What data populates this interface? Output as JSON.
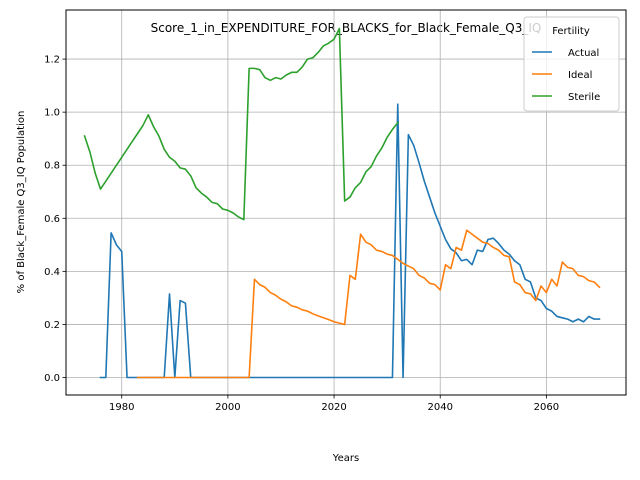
{
  "chart_data": {
    "type": "line",
    "title": "Score_1_in_EXPENDITURE_FOR_BLACKS_for_Black_Female_Q3_IQ",
    "xlabel": "Years",
    "ylabel": "% of Black_Female Q3_IQ Population",
    "xlim": [
      1969.5,
      2075
    ],
    "ylim": [
      -0.066,
      1.385
    ],
    "xticks": [
      1980,
      2000,
      2020,
      2040,
      2060
    ],
    "yticks": [
      0.0,
      0.2,
      0.4,
      0.6,
      0.8,
      1.0,
      1.2
    ],
    "xtick_labels": [
      "1980",
      "2000",
      "2020",
      "2040",
      "2060"
    ],
    "ytick_labels": [
      "0.0",
      "0.2",
      "0.4",
      "0.6",
      "0.8",
      "1.0",
      "1.2"
    ],
    "grid": true,
    "legend": {
      "title": "Fertility",
      "position": "top-right"
    },
    "series": [
      {
        "name": "Actual",
        "color": "#1f77b4",
        "x": [
          1976,
          1977,
          1978,
          1979,
          1980,
          1981,
          1982,
          1983,
          1984,
          1985,
          1986,
          1987,
          1988,
          1989,
          1990,
          1991,
          1992,
          1993,
          1994,
          1995,
          2000,
          2005,
          2010,
          2015,
          2020,
          2025,
          2030,
          2031,
          2032,
          2033,
          2034,
          2035,
          2036,
          2037,
          2038,
          2039,
          2040,
          2041,
          2042,
          2043,
          2044,
          2045,
          2046,
          2047,
          2048,
          2049,
          2050,
          2051,
          2052,
          2053,
          2054,
          2055,
          2056,
          2057,
          2058,
          2059,
          2060,
          2061,
          2062,
          2063,
          2064,
          2065,
          2066,
          2067,
          2068,
          2069,
          2070
        ],
        "y": [
          0.0,
          0.0,
          0.545,
          0.5,
          0.475,
          0.0,
          0.0,
          0.0,
          0.0,
          0.0,
          0.0,
          0.0,
          0.0,
          0.315,
          0.0,
          0.29,
          0.28,
          0.0,
          0.0,
          0.0,
          0.0,
          0.0,
          0.0,
          0.0,
          0.0,
          0.0,
          0.0,
          0.0,
          1.03,
          0.0,
          0.915,
          0.875,
          0.81,
          0.74,
          0.68,
          0.62,
          0.57,
          0.52,
          0.485,
          0.47,
          0.44,
          0.445,
          0.425,
          0.48,
          0.475,
          0.52,
          0.525,
          0.505,
          0.48,
          0.465,
          0.44,
          0.425,
          0.37,
          0.36,
          0.3,
          0.29,
          0.26,
          0.25,
          0.23,
          0.225,
          0.22,
          0.21,
          0.22,
          0.21,
          0.23,
          0.22,
          0.22
        ]
      },
      {
        "name": "Ideal",
        "color": "#ff7f0e",
        "x": [
          1983,
          1990,
          2000,
          2004,
          2005,
          2006,
          2007,
          2008,
          2009,
          2010,
          2011,
          2012,
          2013,
          2014,
          2015,
          2016,
          2017,
          2018,
          2019,
          2020,
          2021,
          2022,
          2023,
          2024,
          2025,
          2026,
          2027,
          2028,
          2029,
          2030,
          2031,
          2032,
          2033,
          2034,
          2035,
          2036,
          2037,
          2038,
          2039,
          2040,
          2041,
          2042,
          2043,
          2044,
          2045,
          2046,
          2047,
          2048,
          2049,
          2050,
          2051,
          2052,
          2053,
          2054,
          2055,
          2056,
          2057,
          2058,
          2059,
          2060,
          2061,
          2062,
          2063,
          2064,
          2065,
          2066,
          2067,
          2068,
          2069,
          2070
        ],
        "y": [
          0.0,
          0.0,
          0.0,
          0.0,
          0.37,
          0.35,
          0.34,
          0.32,
          0.31,
          0.295,
          0.285,
          0.27,
          0.265,
          0.255,
          0.25,
          0.24,
          0.232,
          0.225,
          0.218,
          0.21,
          0.205,
          0.2,
          0.385,
          0.37,
          0.54,
          0.51,
          0.5,
          0.48,
          0.475,
          0.465,
          0.46,
          0.445,
          0.43,
          0.42,
          0.41,
          0.385,
          0.375,
          0.355,
          0.35,
          0.33,
          0.425,
          0.41,
          0.49,
          0.48,
          0.555,
          0.54,
          0.525,
          0.51,
          0.505,
          0.49,
          0.48,
          0.46,
          0.455,
          0.36,
          0.35,
          0.32,
          0.315,
          0.29,
          0.345,
          0.32,
          0.37,
          0.345,
          0.435,
          0.415,
          0.41,
          0.385,
          0.38,
          0.365,
          0.36,
          0.34
        ]
      },
      {
        "name": "Sterile",
        "color": "#2ca02c",
        "x": [
          1973,
          1974,
          1975,
          1976,
          1977,
          1978,
          1979,
          1980,
          1981,
          1982,
          1983,
          1984,
          1985,
          1986,
          1987,
          1988,
          1989,
          1990,
          1991,
          1992,
          1993,
          1994,
          1995,
          1996,
          1997,
          1998,
          1999,
          2000,
          2001,
          2002,
          2003,
          2004,
          2005,
          2006,
          2007,
          2008,
          2009,
          2010,
          2011,
          2012,
          2013,
          2014,
          2015,
          2016,
          2017,
          2018,
          2019,
          2020,
          2021,
          2022,
          2023,
          2024,
          2025,
          2026,
          2027,
          2028,
          2029,
          2030,
          2031,
          2032
        ],
        "y": [
          0.91,
          0.85,
          0.77,
          0.71,
          0.74,
          0.77,
          0.8,
          0.83,
          0.86,
          0.89,
          0.92,
          0.95,
          0.99,
          0.945,
          0.91,
          0.86,
          0.83,
          0.815,
          0.79,
          0.785,
          0.76,
          0.715,
          0.695,
          0.68,
          0.66,
          0.655,
          0.635,
          0.63,
          0.62,
          0.605,
          0.595,
          1.165,
          1.165,
          1.16,
          1.13,
          1.12,
          1.13,
          1.125,
          1.14,
          1.15,
          1.15,
          1.17,
          1.2,
          1.205,
          1.225,
          1.25,
          1.26,
          1.275,
          1.315,
          0.665,
          0.68,
          0.715,
          0.735,
          0.775,
          0.795,
          0.835,
          0.865,
          0.905,
          0.935,
          0.96
        ]
      }
    ]
  }
}
